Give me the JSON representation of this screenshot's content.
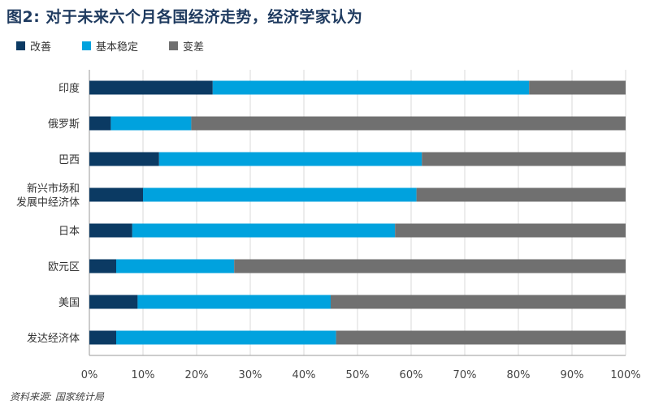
{
  "title": "图2: 对于未来六个月各国经济走势，经济学家认为",
  "source": "资料来源: 国家统计局",
  "colors": {
    "improve": "#0b3a63",
    "stable": "#00a2de",
    "worse": "#707070",
    "grid": "#d8d8d8",
    "axis": "#9a9a9a"
  },
  "legend": [
    {
      "label": "改善",
      "color": "#0b3a63"
    },
    {
      "label": "基本稳定",
      "color": "#00a2de"
    },
    {
      "label": "变差",
      "color": "#707070"
    }
  ],
  "chart_data": {
    "type": "bar",
    "orientation": "horizontal",
    "stacked": true,
    "title": "图2: 对于未来六个月各国经济走势，经济学家认为",
    "categories": [
      "印度",
      "俄罗斯",
      "巴西",
      "新兴市场和\n发展中经济体",
      "日本",
      "欧元区",
      "美国",
      "发达经济体"
    ],
    "series": [
      {
        "name": "改善",
        "values": [
          23,
          4,
          13,
          10,
          8,
          5,
          9,
          5
        ]
      },
      {
        "name": "基本稳定",
        "values": [
          59,
          15,
          49,
          51,
          49,
          22,
          36,
          41
        ]
      },
      {
        "name": "变差",
        "values": [
          18,
          81,
          38,
          39,
          43,
          73,
          55,
          54
        ]
      }
    ],
    "xlim": [
      0,
      100
    ],
    "xticks": [
      "0%",
      "10%",
      "20%",
      "30%",
      "40%",
      "50%",
      "60%",
      "70%",
      "80%",
      "90%",
      "100%"
    ],
    "grid": true,
    "legend_position": "top-left"
  }
}
